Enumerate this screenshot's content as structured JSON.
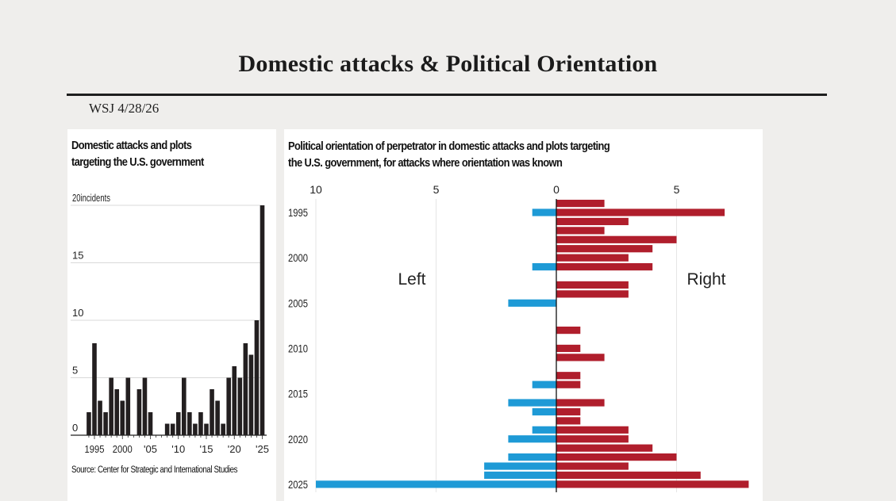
{
  "header": {
    "title": "Domestic attacks & Political Orientation",
    "dateline": "WSJ 4/28/26"
  },
  "colors": {
    "background": "#efeeec",
    "bar_incidents": "#231f20",
    "left": "#1e9ad6",
    "right": "#b01e2c",
    "gridline": "#d9d9d9"
  },
  "chart_data": [
    {
      "type": "bar",
      "title": "Domestic attacks and plots targeting the U.S. government",
      "title_lines": [
        "Domestic attacks and plots",
        "targeting the U.S. government"
      ],
      "ylabel": "incidents",
      "ylim": [
        0,
        20
      ],
      "yticks": [
        0,
        5,
        10,
        15,
        20
      ],
      "ytick_labels": [
        "0",
        "5",
        "10",
        "15",
        "20incidents"
      ],
      "grid": true,
      "xticks": [
        1995,
        2000,
        2005,
        2010,
        2015,
        2020,
        2025
      ],
      "xtick_labels": [
        "1995",
        "2000",
        "'05",
        "'10",
        "'15",
        "'20",
        "'25"
      ],
      "categories": [
        1994,
        1995,
        1996,
        1997,
        1998,
        1999,
        2000,
        2001,
        2002,
        2003,
        2004,
        2005,
        2006,
        2007,
        2008,
        2009,
        2010,
        2011,
        2012,
        2013,
        2014,
        2015,
        2016,
        2017,
        2018,
        2019,
        2020,
        2021,
        2022,
        2023,
        2024,
        2025
      ],
      "values": [
        2,
        8,
        3,
        2,
        5,
        4,
        3,
        5,
        0,
        4,
        5,
        2,
        0,
        0,
        1,
        1,
        2,
        5,
        2,
        1,
        2,
        1,
        4,
        3,
        1,
        5,
        6,
        5,
        8,
        7,
        10,
        20
      ],
      "source": "Source: Center for Strategic and International Studies"
    },
    {
      "type": "bar",
      "orientation": "horizontal-diverging",
      "title": "Political orientation of perpetrator in domestic attacks and plots targeting the U.S. government, for attacks where orientation was known",
      "title_lines": [
        "Political orientation of perpetrator in domestic attacks and plots targeting",
        "the U.S. government, for attacks where orientation was known"
      ],
      "xlim": [
        -10,
        8
      ],
      "xticks": [
        -10,
        -5,
        0,
        5
      ],
      "xtick_labels": [
        "10",
        "5",
        "0",
        "5"
      ],
      "grid": true,
      "ytick_years": [
        1995,
        2000,
        2005,
        2010,
        2015,
        2020,
        2025
      ],
      "categories": [
        1994,
        1995,
        1996,
        1997,
        1998,
        1999,
        2000,
        2001,
        2002,
        2003,
        2004,
        2005,
        2006,
        2007,
        2008,
        2009,
        2010,
        2011,
        2012,
        2013,
        2014,
        2015,
        2016,
        2017,
        2018,
        2019,
        2020,
        2021,
        2022,
        2023,
        2024,
        2025
      ],
      "series": [
        {
          "name": "Left",
          "values": [
            0,
            1,
            0,
            0,
            0,
            0,
            0,
            1,
            0,
            0,
            0,
            2,
            0,
            0,
            0,
            0,
            0,
            0,
            0,
            0,
            1,
            0,
            2,
            1,
            0,
            1,
            2,
            0,
            2,
            3,
            3,
            10
          ]
        },
        {
          "name": "Right",
          "values": [
            2,
            7,
            3,
            2,
            5,
            4,
            3,
            4,
            0,
            3,
            3,
            0,
            0,
            0,
            1,
            0,
            1,
            2,
            0,
            1,
            1,
            0,
            2,
            1,
            1,
            3,
            3,
            4,
            5,
            3,
            6,
            8
          ]
        }
      ],
      "annotations": {
        "left_label": "Left",
        "right_label": "Right"
      }
    }
  ]
}
